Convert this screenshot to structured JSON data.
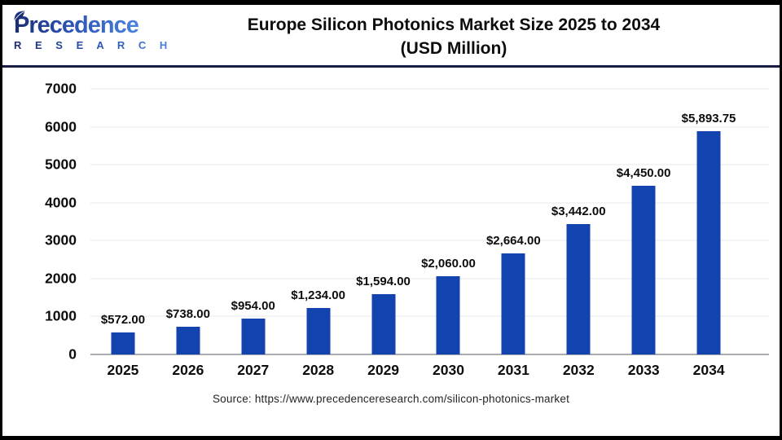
{
  "header": {
    "logo_text": "Precedence",
    "logo_subtext": "R E S E A R C H",
    "title_line1": "Europe Silicon Photonics Market Size 2025 to 2034",
    "title_line2": "(USD Million)"
  },
  "chart_data": {
    "type": "bar",
    "title": "Europe Silicon Photonics Market Size 2025 to 2034 (USD Million)",
    "categories": [
      "2025",
      "2026",
      "2027",
      "2028",
      "2029",
      "2030",
      "2031",
      "2032",
      "2033",
      "2034"
    ],
    "values": [
      572,
      738,
      954,
      1234,
      1594,
      2060,
      2664,
      3442,
      4450,
      5893.75
    ],
    "value_labels": [
      "$572.00",
      "$738.00",
      "$954.00",
      "$1,234.00",
      "$1,594.00",
      "$2,060.00",
      "$2,664.00",
      "$3,442.00",
      "$4,450.00",
      "$5,893.75"
    ],
    "xlabel": "",
    "ylabel": "",
    "ylim": [
      0,
      7000
    ],
    "ytick_step": 1000,
    "ytick_labels": [
      "0",
      "1000",
      "2000",
      "3000",
      "4000",
      "5000",
      "6000",
      "7000"
    ],
    "grid": true,
    "legend": false,
    "bar_color": "#1343ae"
  },
  "footer": {
    "source": "Source: https://www.precedenceresearch.com/silicon-photonics-market"
  },
  "colors": {
    "bar": "#1343ae",
    "divider": "#171d45",
    "gridline": "#e7e9ec",
    "axis_line": "#a9acb1",
    "logo_navy": "#1b2d74",
    "logo_blue": "#4a82e0",
    "text": "#0d0d0d",
    "frame": "#000000"
  }
}
